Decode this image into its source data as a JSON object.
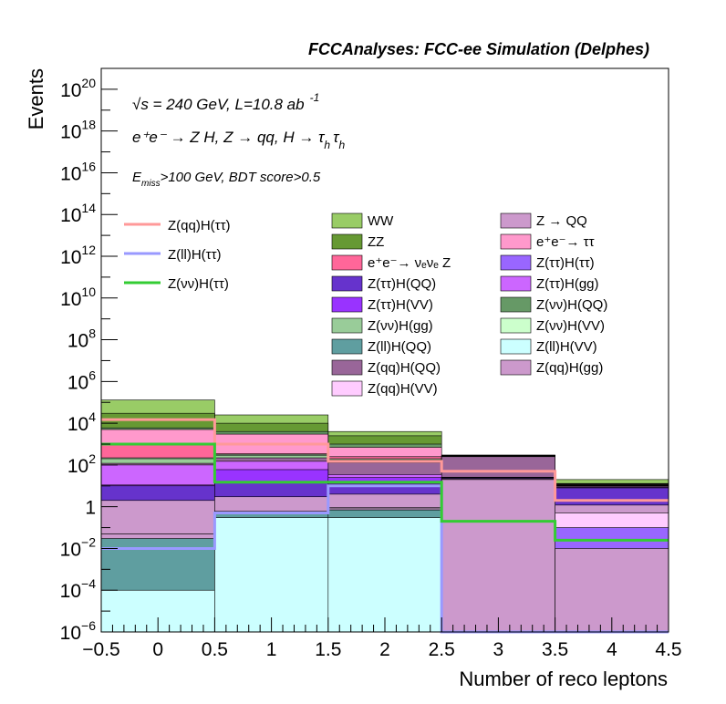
{
  "chart_data": {
    "type": "bar",
    "stacked": true,
    "title": "FCCAnalyses: FCC-ee Simulation (Delphes)",
    "xlabel": "Number of reco leptons",
    "ylabel": "Events",
    "log_y": true,
    "xlim": [
      -0.5,
      4.5
    ],
    "ylim": [
      1e-06,
      1e+21
    ],
    "x_ticks": [
      "−0.5",
      "0",
      "0.5",
      "1",
      "1.5",
      "2",
      "2.5",
      "3",
      "3.5",
      "4",
      "4.5"
    ],
    "y_ticks": [
      {
        "base": "10",
        "exp": "−6"
      },
      {
        "base": "10",
        "exp": "−4"
      },
      {
        "base": "10",
        "exp": "−2"
      },
      {
        "base": "1",
        "exp": ""
      },
      {
        "base": "10",
        "exp": "2"
      },
      {
        "base": "10",
        "exp": "4"
      },
      {
        "base": "10",
        "exp": "6"
      },
      {
        "base": "10",
        "exp": "8"
      },
      {
        "base": "10",
        "exp": "10"
      },
      {
        "base": "10",
        "exp": "12"
      },
      {
        "base": "10",
        "exp": "14"
      },
      {
        "base": "10",
        "exp": "16"
      },
      {
        "base": "10",
        "exp": "18"
      },
      {
        "base": "10",
        "exp": "20"
      }
    ],
    "annotations": {
      "line1": "√s = 240 GeV, L=10.8 ab",
      "line1_sup": "-1",
      "line2": "e⁺e⁻ → Z H, Z → qq, H → τ",
      "line2_sub_h1": "h",
      "line2_tau": "τ",
      "line2_sub_h2": "h",
      "line3_E": "E",
      "line3_sub": "miss",
      "line3_rest": ">100 GeV, BDT score>0.5"
    },
    "bins": [
      0,
      1,
      2,
      3,
      4
    ],
    "bin_edges": [
      -0.5,
      0.5,
      1.5,
      2.5,
      3.5,
      4.5
    ],
    "stack_totals_approx": [
      130000,
      25000,
      4000,
      300,
      20
    ],
    "stack_layers": [
      {
        "name": "Z(ll)H(VV)",
        "color": "#ccffff",
        "tops": [
          0.0001,
          0.3,
          0.3,
          0,
          0
        ]
      },
      {
        "name": "Z(ll)H(QQ)",
        "color": "#5f9ea0",
        "tops": [
          0.03,
          0.5,
          0.7,
          0,
          0
        ]
      },
      {
        "name": "Z → QQ",
        "color": "#cc99cc",
        "tops": [
          0.05,
          0.5,
          0.8,
          20,
          0.01
        ]
      },
      {
        "name": "Z(ττ)H(ττ)",
        "color": "#9966ff",
        "tops": [
          0.05,
          0.5,
          0.8,
          20,
          0.1
        ]
      },
      {
        "name": "Z(qq)H(VV)",
        "color": "#ffccff",
        "tops": [
          0.05,
          0.6,
          0.9,
          20,
          0.5
        ]
      },
      {
        "name": "Z(qq)H(gg)",
        "color": "#cc99cc",
        "tops": [
          2,
          3,
          4,
          22,
          1.2
        ]
      },
      {
        "name": "Z(ττ)H(QQ)",
        "color": "#6633cc",
        "tops": [
          10,
          15,
          12,
          24,
          8
        ]
      },
      {
        "name": "Z(ττ)H(VV)",
        "color": "#9933ff",
        "tops": [
          11,
          60,
          25,
          25,
          8.5
        ]
      },
      {
        "name": "Z(ττ)H(gg)",
        "color": "#cc66ff",
        "tops": [
          100,
          150,
          35,
          26,
          9
        ]
      },
      {
        "name": "Z(qq)H(QQ)",
        "color": "#996699",
        "tops": [
          120,
          220,
          130,
          250,
          10
        ]
      },
      {
        "name": "Z(νν)H(gg)",
        "color": "#99cc99",
        "tops": [
          200,
          280,
          180,
          260,
          10.5
        ]
      },
      {
        "name": "Z(νν)H(VV)",
        "color": "#ccffcc",
        "tops": [
          220,
          320,
          200,
          265,
          11
        ]
      },
      {
        "name": "e⁺e⁻→ νₑνₑ Z",
        "color": "#ff6699",
        "tops": [
          1000,
          350,
          250,
          270,
          11.5
        ]
      },
      {
        "name": "e⁺e⁻→ ττ",
        "color": "#ff99cc",
        "tops": [
          5000,
          3000,
          700,
          280,
          12
        ]
      },
      {
        "name": "Z(νν)H(QQ)",
        "color": "#669966",
        "tops": [
          6000,
          4000,
          1000,
          285,
          12.5
        ]
      },
      {
        "name": "ZZ",
        "color": "#669933",
        "tops": [
          30000,
          10000,
          2500,
          290,
          13
        ]
      },
      {
        "name": "WW",
        "color": "#99cc66",
        "tops": [
          130000,
          25000,
          4000,
          300,
          20
        ]
      }
    ],
    "overlay_lines": [
      {
        "name": "Z(qq)H(ττ)",
        "color": "#ff9999",
        "values": [
          15000,
          1000,
          150,
          50,
          2
        ]
      },
      {
        "name": "Z(ll)H(ττ)",
        "color": "#9999ff",
        "values": [
          0.01,
          0.5,
          10,
          1e-07,
          1e-07
        ]
      },
      {
        "name": "Z(νν)H(ττ)",
        "color": "#33cc33",
        "values": [
          1000,
          15,
          15,
          0.2,
          0.025
        ]
      }
    ],
    "legend_lines": [
      "Z(qq)H(ττ)",
      "Z(ll)H(ττ)",
      "Z(νν)H(ττ)"
    ],
    "legend_col1": [
      {
        "name": "WW",
        "color": "#99cc66"
      },
      {
        "name": "ZZ",
        "color": "#669933"
      },
      {
        "name": "e⁺e⁻→ νₑνₑ Z",
        "color": "#ff6699"
      },
      {
        "name": "Z(ττ)H(QQ)",
        "color": "#6633cc"
      },
      {
        "name": "Z(ττ)H(VV)",
        "color": "#9933ff"
      },
      {
        "name": "Z(νν)H(gg)",
        "color": "#99cc99"
      },
      {
        "name": "Z(ll)H(QQ)",
        "color": "#5f9ea0"
      },
      {
        "name": "Z(qq)H(QQ)",
        "color": "#996699"
      },
      {
        "name": "Z(qq)H(VV)",
        "color": "#ffccff"
      }
    ],
    "legend_col2": [
      {
        "name": "Z → QQ",
        "color": "#cc99cc"
      },
      {
        "name": "e⁺e⁻→ ττ",
        "color": "#ff99cc"
      },
      {
        "name": "Z(ττ)H(ττ)",
        "color": "#9966ff"
      },
      {
        "name": "Z(ττ)H(gg)",
        "color": "#cc66ff"
      },
      {
        "name": "Z(νν)H(QQ)",
        "color": "#669966"
      },
      {
        "name": "Z(νν)H(VV)",
        "color": "#ccffcc"
      },
      {
        "name": "Z(ll)H(VV)",
        "color": "#ccffff"
      },
      {
        "name": "Z(qq)H(gg)",
        "color": "#cc99cc"
      }
    ]
  }
}
